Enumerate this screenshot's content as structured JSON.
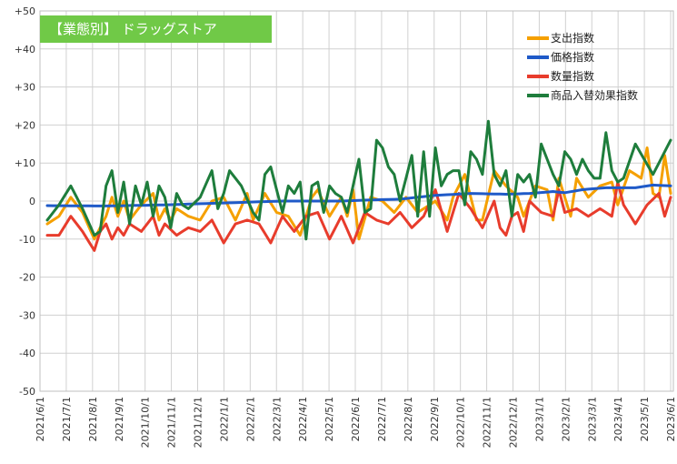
{
  "chart_data": {
    "type": "line",
    "title": "【業態別】 ドラッグストア",
    "ylim": [
      -50,
      50
    ],
    "yticks": [
      "+50",
      "+40",
      "+30",
      "+20",
      "+10",
      "0",
      "-10",
      "-20",
      "-30",
      "-40",
      "-50"
    ],
    "xticks": [
      "2021/6/1",
      "2021/7/1",
      "2021/8/1",
      "2021/9/1",
      "2021/10/1",
      "2021/11/1",
      "2021/12/1",
      "2022/1/1",
      "2022/2/1",
      "2022/3/1",
      "2022/4/1",
      "2022/5/1",
      "2022/6/1",
      "2022/7/1",
      "2022/8/1",
      "2022/9/1",
      "2022/10/1",
      "2022/11/1",
      "2022/12/1",
      "2023/1/1",
      "2023/2/1",
      "2023/3/1",
      "2023/4/1",
      "2023/5/1",
      "2023/6/1"
    ],
    "legend_position": "top-right",
    "grid": true,
    "week_count": 107,
    "series": [
      {
        "name": "支出指数",
        "color": "#f5a000",
        "anchors": [
          [
            0,
            -6
          ],
          [
            2,
            -4
          ],
          [
            4,
            1
          ],
          [
            6,
            -3
          ],
          [
            8,
            -10
          ],
          [
            10,
            -4
          ],
          [
            11,
            1
          ],
          [
            12,
            -4
          ],
          [
            13,
            0
          ],
          [
            14,
            -5
          ],
          [
            16,
            -1
          ],
          [
            18,
            2
          ],
          [
            19,
            -5
          ],
          [
            20,
            -2
          ],
          [
            21,
            -5
          ],
          [
            22,
            -2
          ],
          [
            24,
            -4
          ],
          [
            26,
            -5
          ],
          [
            28,
            0
          ],
          [
            30,
            1
          ],
          [
            32,
            -5
          ],
          [
            34,
            2
          ],
          [
            35,
            -5
          ],
          [
            37,
            2
          ],
          [
            39,
            -3
          ],
          [
            41,
            -4
          ],
          [
            43,
            -9
          ],
          [
            45,
            1
          ],
          [
            46,
            3
          ],
          [
            48,
            -4
          ],
          [
            50,
            1
          ],
          [
            51,
            -4
          ],
          [
            52,
            3
          ],
          [
            53,
            -10
          ],
          [
            55,
            1
          ],
          [
            57,
            0
          ],
          [
            59,
            -3
          ],
          [
            61,
            1
          ],
          [
            63,
            -3
          ],
          [
            65,
            -1
          ],
          [
            66,
            0
          ],
          [
            68,
            -5
          ],
          [
            69,
            1
          ],
          [
            71,
            7
          ],
          [
            73,
            -5
          ],
          [
            74,
            -5
          ],
          [
            76,
            8
          ],
          [
            78,
            4
          ],
          [
            80,
            1
          ],
          [
            81,
            -4
          ],
          [
            83,
            4
          ],
          [
            85,
            3
          ],
          [
            86,
            -5
          ],
          [
            87,
            6
          ],
          [
            89,
            -4
          ],
          [
            90,
            6
          ],
          [
            92,
            1
          ],
          [
            94,
            4
          ],
          [
            96,
            5
          ],
          [
            97,
            -1
          ],
          [
            99,
            8
          ],
          [
            101,
            6
          ],
          [
            102,
            14
          ],
          [
            103,
            2
          ],
          [
            104,
            1
          ],
          [
            105,
            12
          ],
          [
            106,
            2
          ]
        ]
      },
      {
        "name": "価格指数",
        "color": "#1f5ac8",
        "anchors": [
          [
            0,
            -1.2
          ],
          [
            10,
            -1.3
          ],
          [
            20,
            -1
          ],
          [
            30,
            -0.5
          ],
          [
            40,
            0
          ],
          [
            50,
            0
          ],
          [
            55,
            0.3
          ],
          [
            60,
            0.5
          ],
          [
            66,
            1.5
          ],
          [
            72,
            2
          ],
          [
            78,
            1.8
          ],
          [
            82,
            2
          ],
          [
            86,
            2.5
          ],
          [
            88,
            2.2
          ],
          [
            91,
            3
          ],
          [
            95,
            3.5
          ],
          [
            100,
            3.5
          ],
          [
            103,
            4.2
          ],
          [
            106,
            4
          ]
        ]
      },
      {
        "name": "数量指数",
        "color": "#e83c2c",
        "anchors": [
          [
            0,
            -9
          ],
          [
            2,
            -9
          ],
          [
            4,
            -4
          ],
          [
            6,
            -8
          ],
          [
            8,
            -13
          ],
          [
            9,
            -8
          ],
          [
            10,
            -6
          ],
          [
            11,
            -10
          ],
          [
            12,
            -7
          ],
          [
            13,
            -9
          ],
          [
            14,
            -6
          ],
          [
            16,
            -8
          ],
          [
            18,
            -4
          ],
          [
            19,
            -9
          ],
          [
            20,
            -6
          ],
          [
            22,
            -9
          ],
          [
            24,
            -7
          ],
          [
            26,
            -8
          ],
          [
            28,
            -5
          ],
          [
            30,
            -11
          ],
          [
            32,
            -6
          ],
          [
            34,
            -5
          ],
          [
            36,
            -6
          ],
          [
            38,
            -11
          ],
          [
            40,
            -4
          ],
          [
            42,
            -8
          ],
          [
            44,
            -4
          ],
          [
            46,
            -3
          ],
          [
            48,
            -10
          ],
          [
            50,
            -4
          ],
          [
            52,
            -11
          ],
          [
            54,
            -3
          ],
          [
            56,
            -5
          ],
          [
            58,
            -6
          ],
          [
            60,
            -3
          ],
          [
            62,
            -7
          ],
          [
            64,
            -4
          ],
          [
            66,
            3
          ],
          [
            68,
            -8
          ],
          [
            70,
            2
          ],
          [
            72,
            -2
          ],
          [
            74,
            -7
          ],
          [
            76,
            0
          ],
          [
            77,
            -7
          ],
          [
            78,
            -9
          ],
          [
            79,
            -4
          ],
          [
            80,
            -3
          ],
          [
            81,
            -8
          ],
          [
            82,
            0
          ],
          [
            84,
            -3
          ],
          [
            86,
            -4
          ],
          [
            87,
            3
          ],
          [
            88,
            -3
          ],
          [
            90,
            -2
          ],
          [
            92,
            -4
          ],
          [
            94,
            -2
          ],
          [
            96,
            -4
          ],
          [
            97,
            5
          ],
          [
            98,
            -1
          ],
          [
            100,
            -6
          ],
          [
            102,
            -1
          ],
          [
            104,
            2
          ],
          [
            105,
            -4
          ],
          [
            106,
            1
          ]
        ]
      },
      {
        "name": "商品入替効果指数",
        "color": "#1e7d3c",
        "anchors": [
          [
            0,
            -5
          ],
          [
            2,
            -1
          ],
          [
            4,
            4
          ],
          [
            6,
            -2
          ],
          [
            8,
            -9
          ],
          [
            9,
            -8
          ],
          [
            10,
            4
          ],
          [
            11,
            8
          ],
          [
            12,
            -3
          ],
          [
            13,
            5
          ],
          [
            14,
            -6
          ],
          [
            15,
            4
          ],
          [
            16,
            -1
          ],
          [
            17,
            5
          ],
          [
            18,
            -4
          ],
          [
            19,
            4
          ],
          [
            20,
            1
          ],
          [
            21,
            -7
          ],
          [
            22,
            2
          ],
          [
            23,
            -1
          ],
          [
            24,
            -2
          ],
          [
            26,
            1
          ],
          [
            28,
            8
          ],
          [
            29,
            -2
          ],
          [
            30,
            2
          ],
          [
            31,
            8
          ],
          [
            33,
            4
          ],
          [
            35,
            -3
          ],
          [
            36,
            -5
          ],
          [
            37,
            7
          ],
          [
            38,
            9
          ],
          [
            40,
            -3
          ],
          [
            41,
            4
          ],
          [
            42,
            2
          ],
          [
            43,
            5
          ],
          [
            44,
            -10
          ],
          [
            45,
            4
          ],
          [
            46,
            5
          ],
          [
            47,
            -3
          ],
          [
            48,
            4
          ],
          [
            49,
            2
          ],
          [
            50,
            1
          ],
          [
            51,
            -3
          ],
          [
            52,
            4
          ],
          [
            53,
            11
          ],
          [
            54,
            -3
          ],
          [
            55,
            -2
          ],
          [
            56,
            16
          ],
          [
            57,
            14
          ],
          [
            58,
            9
          ],
          [
            59,
            7
          ],
          [
            60,
            0
          ],
          [
            61,
            6
          ],
          [
            62,
            12
          ],
          [
            63,
            -4
          ],
          [
            64,
            13
          ],
          [
            65,
            -4
          ],
          [
            66,
            14
          ],
          [
            67,
            4
          ],
          [
            68,
            7
          ],
          [
            69,
            8
          ],
          [
            70,
            8
          ],
          [
            71,
            -1
          ],
          [
            72,
            13
          ],
          [
            73,
            11
          ],
          [
            74,
            7
          ],
          [
            75,
            21
          ],
          [
            76,
            7
          ],
          [
            77,
            4
          ],
          [
            78,
            8
          ],
          [
            79,
            -4
          ],
          [
            80,
            7
          ],
          [
            81,
            5
          ],
          [
            82,
            7
          ],
          [
            83,
            1
          ],
          [
            84,
            15
          ],
          [
            85,
            11
          ],
          [
            86,
            7
          ],
          [
            87,
            4
          ],
          [
            88,
            13
          ],
          [
            89,
            11
          ],
          [
            90,
            7
          ],
          [
            91,
            11
          ],
          [
            92,
            8
          ],
          [
            93,
            6
          ],
          [
            94,
            6
          ],
          [
            95,
            18
          ],
          [
            96,
            8
          ],
          [
            97,
            5
          ],
          [
            98,
            6
          ],
          [
            100,
            15
          ],
          [
            103,
            7
          ],
          [
            106,
            16
          ]
        ]
      }
    ]
  }
}
